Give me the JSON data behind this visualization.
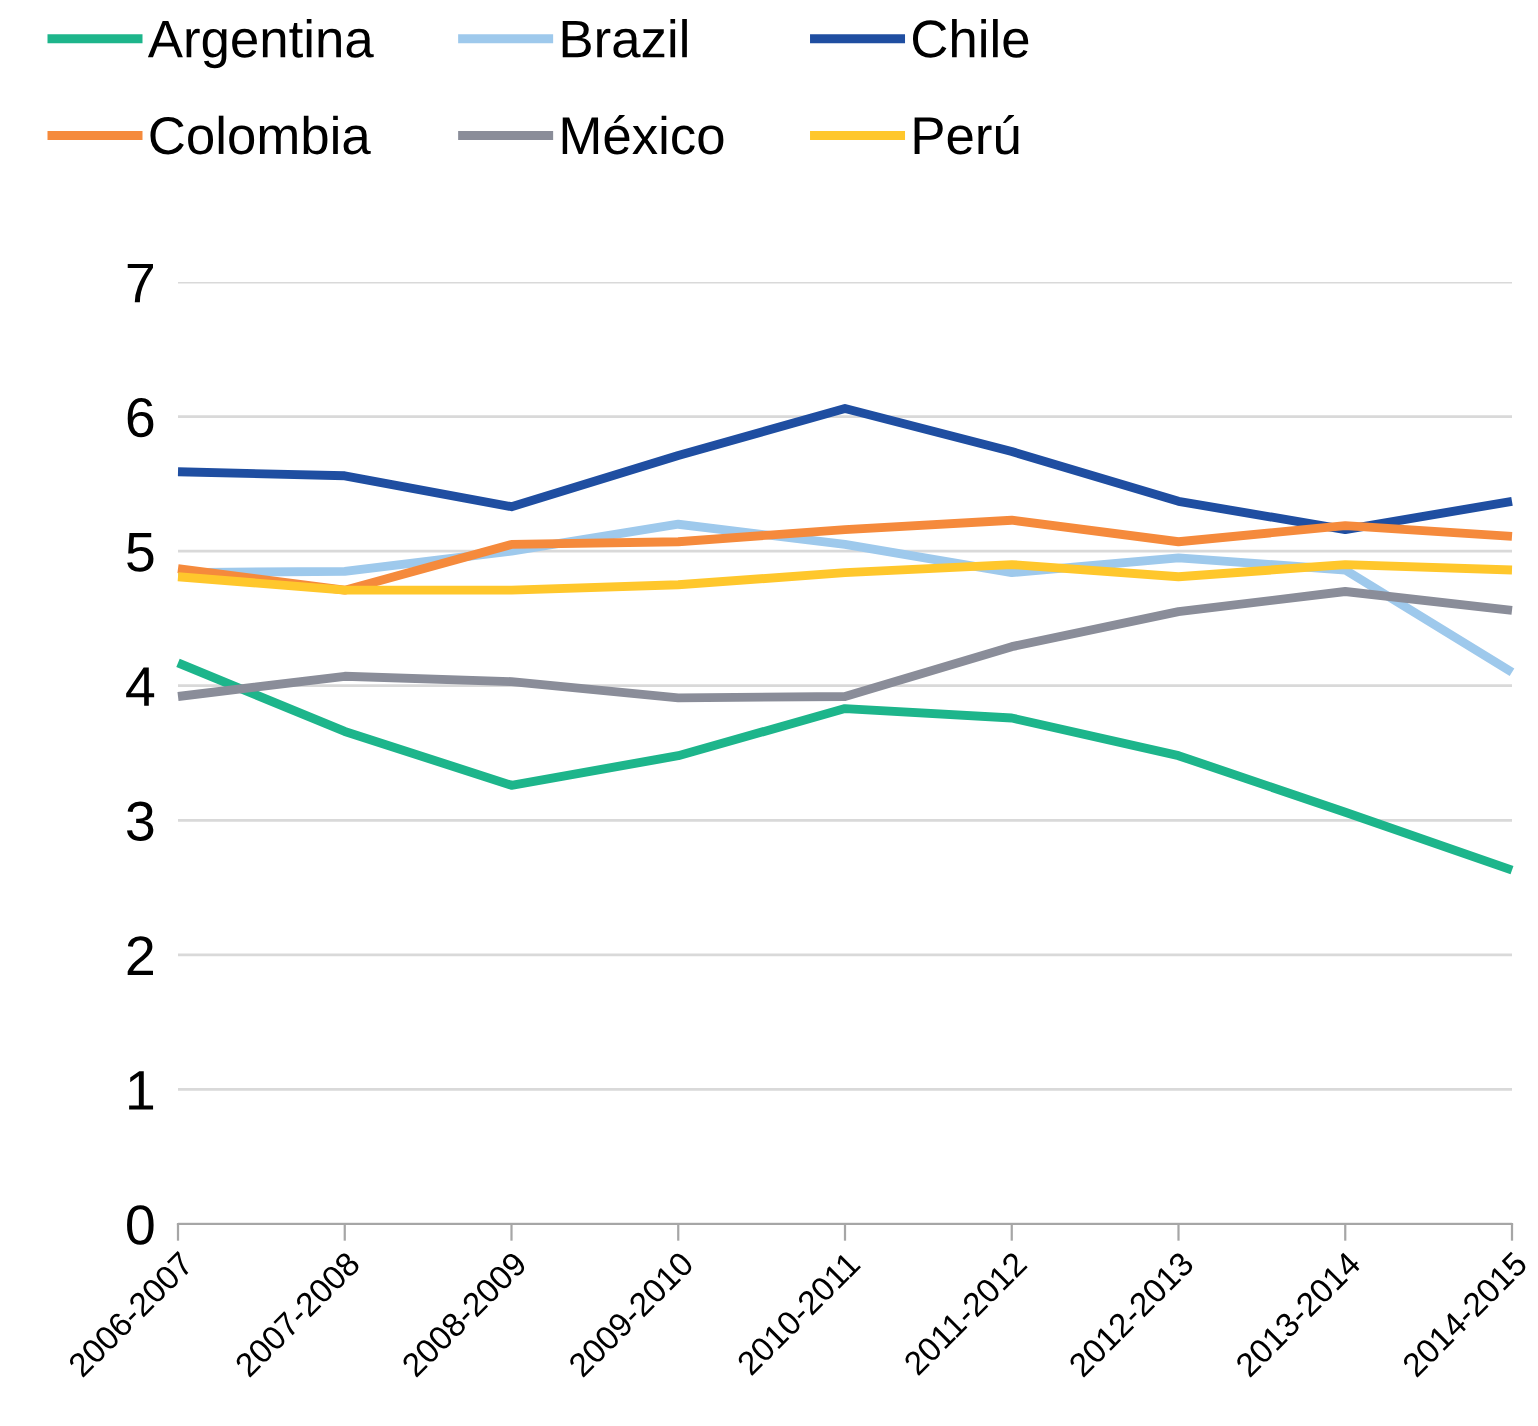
{
  "chart_data": {
    "type": "line",
    "categories": [
      "2006-2007",
      "2007-2008",
      "2008-2009",
      "2009-2010",
      "2010-2011",
      "2011-2012",
      "2012-2013",
      "2013-2014",
      "2014-2015"
    ],
    "series": [
      {
        "name": "Argentina",
        "color": "#1db58b",
        "values": [
          4.17,
          3.66,
          3.26,
          3.48,
          3.83,
          3.76,
          3.48,
          3.06,
          2.63
        ]
      },
      {
        "name": "Brazil",
        "color": "#9ec9ec",
        "values": [
          4.84,
          4.85,
          5.0,
          5.2,
          5.05,
          4.84,
          4.95,
          4.86,
          4.1
        ]
      },
      {
        "name": "Chile",
        "color": "#1f4ea1",
        "values": [
          5.59,
          5.56,
          5.33,
          5.71,
          6.06,
          5.74,
          5.37,
          5.16,
          5.37
        ]
      },
      {
        "name": "Colombia",
        "color": "#f58a3c",
        "values": [
          4.87,
          4.71,
          5.05,
          5.07,
          5.16,
          5.23,
          5.07,
          5.19,
          5.11
        ]
      },
      {
        "name": "México",
        "color": "#8a8d99",
        "values": [
          3.92,
          4.07,
          4.03,
          3.91,
          3.92,
          4.29,
          4.55,
          4.7,
          4.56
        ]
      },
      {
        "name": "Perú",
        "color": "#ffc72c",
        "values": [
          4.81,
          4.71,
          4.71,
          4.75,
          4.84,
          4.9,
          4.81,
          4.9,
          4.86
        ]
      }
    ],
    "ylim": [
      0,
      7
    ],
    "yticks": [
      0,
      1,
      2,
      3,
      4,
      5,
      6,
      7
    ],
    "grid": "y",
    "legend": "top",
    "marker": "none",
    "line_style": "solid"
  }
}
